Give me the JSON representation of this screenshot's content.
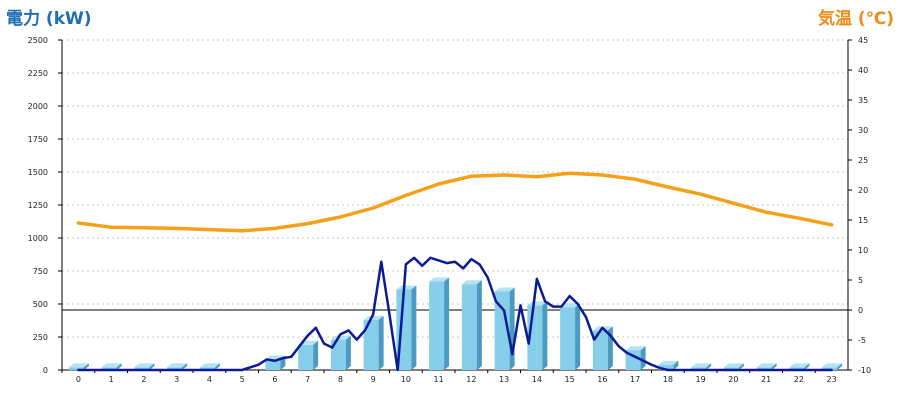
{
  "chart_data": {
    "type": "bar+line",
    "left_axis": {
      "label": "電力 (kW)",
      "range": [
        0,
        2500
      ],
      "ticks": [
        0,
        250,
        500,
        750,
        1000,
        1250,
        1500,
        1750,
        2000,
        2250,
        2500
      ]
    },
    "right_axis": {
      "label": "気温 (℃)",
      "range": [
        -10,
        45
      ],
      "ticks": [
        -10,
        -5,
        0,
        5,
        10,
        15,
        20,
        25,
        30,
        35,
        40,
        45
      ]
    },
    "categories": [
      "0",
      "1",
      "2",
      "3",
      "4",
      "5",
      "6",
      "7",
      "8",
      "9",
      "10",
      "11",
      "12",
      "13",
      "14",
      "15",
      "16",
      "17",
      "18",
      "19",
      "20",
      "21",
      "22",
      "23"
    ],
    "grid": true,
    "bars": {
      "axis": "left",
      "color": "#87ceeb",
      "values": [
        20,
        20,
        20,
        20,
        20,
        0,
        80,
        190,
        230,
        380,
        610,
        670,
        650,
        595,
        490,
        475,
        300,
        150,
        40,
        20,
        20,
        20,
        20,
        20
      ]
    },
    "power_line": {
      "axis": "left",
      "color": "#0b1b96",
      "x": [
        0,
        1,
        2,
        3,
        4,
        5,
        5.25,
        5.5,
        5.75,
        6,
        6.25,
        6.5,
        6.75,
        7,
        7.25,
        7.5,
        7.75,
        8,
        8.25,
        8.5,
        8.75,
        9,
        9.25,
        9.5,
        9.75,
        10,
        10.25,
        10.5,
        10.75,
        11,
        11.25,
        11.5,
        11.75,
        12,
        12.25,
        12.5,
        12.75,
        13,
        13.25,
        13.5,
        13.75,
        14,
        14.25,
        14.5,
        14.75,
        15,
        15.25,
        15.5,
        15.75,
        16,
        16.25,
        16.5,
        16.75,
        17,
        17.25,
        17.5,
        17.75,
        18,
        19,
        20,
        21,
        22,
        23
      ],
      "y": [
        0,
        0,
        0,
        0,
        0,
        0,
        20,
        40,
        80,
        70,
        90,
        100,
        180,
        260,
        320,
        200,
        170,
        270,
        300,
        230,
        300,
        420,
        820,
        420,
        0,
        800,
        850,
        790,
        850,
        830,
        810,
        820,
        770,
        840,
        800,
        700,
        520,
        450,
        120,
        490,
        200,
        690,
        520,
        480,
        480,
        560,
        500,
        400,
        230,
        320,
        260,
        180,
        130,
        100,
        70,
        40,
        15,
        0,
        0,
        0,
        0,
        0,
        0
      ]
    },
    "temp_line": {
      "axis": "right",
      "color": "#f5a019",
      "x": [
        0,
        1,
        2,
        3,
        4,
        5,
        6,
        7,
        8,
        9,
        10,
        11,
        12,
        13,
        14,
        15,
        16,
        17,
        18,
        19,
        20,
        21,
        22,
        23
      ],
      "y": [
        14.5,
        13.8,
        13.7,
        13.6,
        13.4,
        13.2,
        13.6,
        14.4,
        15.5,
        17.0,
        19.1,
        21.0,
        22.3,
        22.5,
        22.2,
        22.8,
        22.5,
        21.8,
        20.5,
        19.3,
        17.8,
        16.3,
        15.3,
        14.2
      ]
    }
  }
}
